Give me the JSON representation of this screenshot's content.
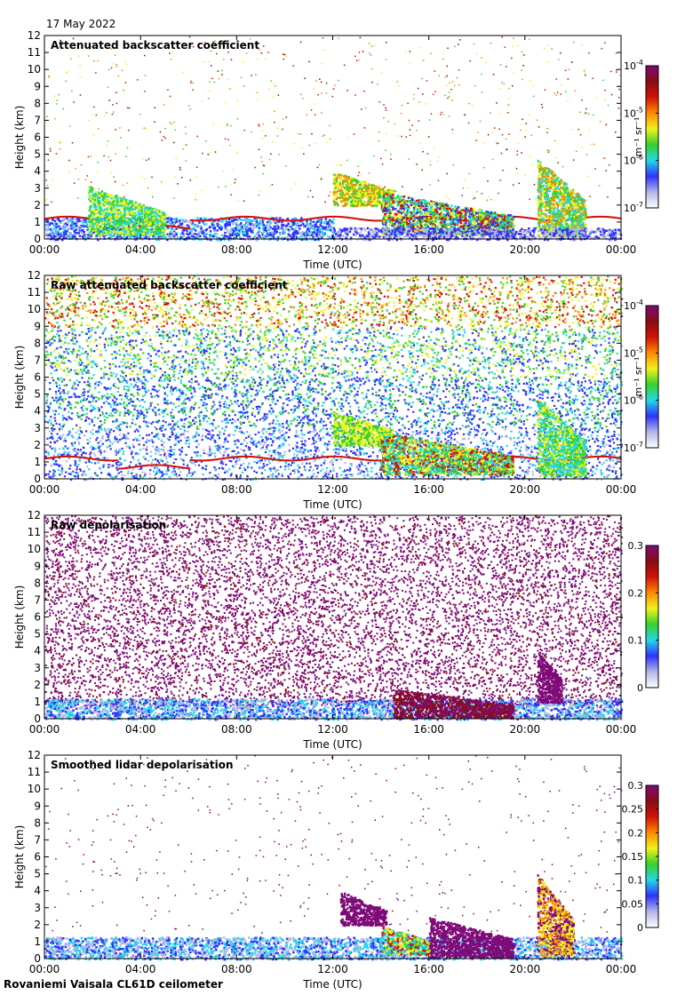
{
  "date": "17 May 2022",
  "footer": "Rovaniemi Vaisala CL61D ceilometer",
  "colors": {
    "white": "#ffffff",
    "lilac": "#b3b5e6",
    "blue": "#2f33ff",
    "cyan": "#22d8e8",
    "green": "#36d12a",
    "yellow": "#f0f21c",
    "orange": "#ff8a00",
    "red": "#d4120a",
    "darkred": "#8a0c12",
    "purple": "#7e0a78"
  },
  "chart_data": [
    {
      "type": "heatmap",
      "title": "Attenuated backscatter coefficient",
      "xlabel": "Time (UTC)",
      "ylabel": "Height (km)",
      "x_ticks": [
        "00:00",
        "04:00",
        "08:00",
        "12:00",
        "16:00",
        "20:00",
        "00:00"
      ],
      "xlim_hours": [
        0,
        24
      ],
      "y_ticks": [
        0,
        1,
        2,
        3,
        4,
        5,
        6,
        7,
        8,
        9,
        10,
        11,
        12
      ],
      "ylim_km": [
        0,
        12
      ],
      "colorbar": {
        "scale": "log",
        "range": [
          1e-07,
          0.0001
        ],
        "unit": "m⁻¹ sr⁻¹",
        "ticks": [
          {
            "base": "10",
            "exp": "-4",
            "v": 0.0001
          },
          {
            "base": "10",
            "exp": "-5",
            "v": 1e-05
          },
          {
            "base": "10",
            "exp": "-6",
            "v": 1e-06
          },
          {
            "base": "10",
            "exp": "-7",
            "v": 1e-07
          }
        ]
      },
      "features": [
        {
          "kind": "noise",
          "density": 0.05,
          "h_min": 2.2,
          "colors": [
            "yellow",
            "orange",
            "red",
            "darkred",
            "green"
          ]
        },
        {
          "kind": "band",
          "t_start": 0,
          "t_end": 12,
          "h_low": 0.0,
          "h_high": 1.3,
          "colors": [
            "blue",
            "lilac",
            "blue",
            "cyan"
          ]
        },
        {
          "kind": "layer",
          "t_start": 0,
          "t_end": 24,
          "h": 1.25,
          "color": "red"
        },
        {
          "kind": "cloud",
          "t_start": 1.8,
          "t_end": 5.0,
          "h_low": 0.3,
          "h_high": 3.2,
          "colors": [
            "green",
            "cyan",
            "yellow"
          ]
        },
        {
          "kind": "cloud",
          "t_start": 12.0,
          "t_end": 14.5,
          "h_low": 2.0,
          "h_high": 4.0,
          "colors": [
            "yellow",
            "orange",
            "green"
          ]
        },
        {
          "kind": "cloud",
          "t_start": 14.0,
          "t_end": 19.5,
          "h_low": 0.3,
          "h_high": 2.8,
          "colors": [
            "green",
            "yellow",
            "red",
            "cyan",
            "blue"
          ]
        },
        {
          "kind": "cloud",
          "t_start": 20.5,
          "t_end": 22.5,
          "h_low": 0.2,
          "h_high": 4.8,
          "colors": [
            "green",
            "cyan",
            "yellow",
            "orange"
          ]
        },
        {
          "kind": "band",
          "t_start": 12,
          "t_end": 24,
          "h_low": 0.0,
          "h_high": 0.7,
          "colors": [
            "blue",
            "lilac"
          ]
        }
      ]
    },
    {
      "type": "heatmap",
      "title": "Raw attenuated backscatter coefficient",
      "xlabel": "Time (UTC)",
      "ylabel": "Height (km)",
      "x_ticks": [
        "00:00",
        "04:00",
        "08:00",
        "12:00",
        "16:00",
        "20:00",
        "00:00"
      ],
      "xlim_hours": [
        0,
        24
      ],
      "y_ticks": [
        0,
        1,
        2,
        3,
        4,
        5,
        6,
        7,
        8,
        9,
        10,
        11,
        12
      ],
      "ylim_km": [
        0,
        12
      ],
      "colorbar": {
        "scale": "log",
        "range": [
          1e-07,
          0.0001
        ],
        "unit": "m⁻¹ sr⁻¹",
        "ticks": [
          {
            "base": "10",
            "exp": "-4",
            "v": 0.0001
          },
          {
            "base": "10",
            "exp": "-5",
            "v": 1e-05
          },
          {
            "base": "10",
            "exp": "-6",
            "v": 1e-06
          },
          {
            "base": "10",
            "exp": "-7",
            "v": 1e-07
          }
        ]
      },
      "features": [
        {
          "kind": "field",
          "note": "dense noise: blue low, green/yellow mid, orange/red top"
        },
        {
          "kind": "layer",
          "t_start": 0,
          "t_end": 24,
          "h": 1.25,
          "color": "red"
        },
        {
          "kind": "cloud",
          "t_start": 12.0,
          "t_end": 14.5,
          "h_low": 2.0,
          "h_high": 4.0,
          "colors": [
            "yellow",
            "green"
          ]
        },
        {
          "kind": "cloud",
          "t_start": 14.0,
          "t_end": 19.5,
          "h_low": 0.3,
          "h_high": 2.8,
          "colors": [
            "green",
            "yellow",
            "red",
            "cyan"
          ]
        },
        {
          "kind": "cloud",
          "t_start": 20.5,
          "t_end": 22.5,
          "h_low": 0.2,
          "h_high": 4.8,
          "colors": [
            "green",
            "cyan",
            "yellow"
          ]
        }
      ]
    },
    {
      "type": "heatmap",
      "title": "Raw depolarisation",
      "xlabel": "Time (UTC)",
      "ylabel": "Height (km)",
      "x_ticks": [
        "00:00",
        "04:00",
        "08:00",
        "12:00",
        "16:00",
        "20:00",
        "00:00"
      ],
      "xlim_hours": [
        0,
        24
      ],
      "y_ticks": [
        0,
        1,
        2,
        3,
        4,
        5,
        6,
        7,
        8,
        9,
        10,
        11,
        12
      ],
      "ylim_km": [
        0,
        12
      ],
      "colorbar": {
        "scale": "linear",
        "range": [
          0,
          0.3
        ],
        "unit": "",
        "ticks": [
          {
            "label": "0.3",
            "v": 0.3
          },
          {
            "label": "0.2",
            "v": 0.2
          },
          {
            "label": "0.1",
            "v": 0.1
          },
          {
            "label": "0",
            "v": 0
          }
        ]
      },
      "features": [
        {
          "kind": "field",
          "note": "purple speckle on white over whole panel"
        },
        {
          "kind": "band",
          "t_start": 0,
          "t_end": 24,
          "h_low": 0.0,
          "h_high": 1.2,
          "colors": [
            "lilac",
            "blue",
            "cyan"
          ]
        },
        {
          "kind": "cloud",
          "t_start": 14.5,
          "t_end": 19.5,
          "h_low": 0.1,
          "h_high": 1.8,
          "colors": [
            "purple",
            "darkred"
          ]
        },
        {
          "kind": "cloud",
          "t_start": 20.5,
          "t_end": 21.5,
          "h_low": 1.0,
          "h_high": 4.0,
          "colors": [
            "purple"
          ]
        }
      ]
    },
    {
      "type": "heatmap",
      "title": "Smoothed lidar depolarisation",
      "xlabel": "Time (UTC)",
      "ylabel": "Height (km)",
      "x_ticks": [
        "00:00",
        "04:00",
        "08:00",
        "12:00",
        "16:00",
        "20:00",
        "00:00"
      ],
      "xlim_hours": [
        0,
        24
      ],
      "y_ticks": [
        0,
        1,
        2,
        3,
        4,
        5,
        6,
        7,
        8,
        9,
        10,
        11,
        12
      ],
      "ylim_km": [
        0,
        12
      ],
      "colorbar": {
        "scale": "linear",
        "range": [
          0,
          0.3
        ],
        "unit": "",
        "ticks": [
          {
            "label": "0.3",
            "v": 0.3
          },
          {
            "label": "0.25",
            "v": 0.25
          },
          {
            "label": "0.2",
            "v": 0.2
          },
          {
            "label": "0.15",
            "v": 0.15
          },
          {
            "label": "0.1",
            "v": 0.1
          },
          {
            "label": "0.05",
            "v": 0.05
          },
          {
            "label": "0",
            "v": 0
          }
        ]
      },
      "features": [
        {
          "kind": "noise",
          "density": 0.03,
          "h_min": 1.5,
          "colors": [
            "purple",
            "darkred"
          ]
        },
        {
          "kind": "band",
          "t_start": 0,
          "t_end": 24,
          "h_low": 0.0,
          "h_high": 1.3,
          "colors": [
            "lilac",
            "blue",
            "cyan"
          ]
        },
        {
          "kind": "cloud",
          "t_start": 12.3,
          "t_end": 14.2,
          "h_low": 2.0,
          "h_high": 4.0,
          "colors": [
            "purple"
          ]
        },
        {
          "kind": "cloud",
          "t_start": 14.0,
          "t_end": 16.0,
          "h_low": 0.3,
          "h_high": 2.0,
          "colors": [
            "yellow",
            "red",
            "green",
            "cyan"
          ]
        },
        {
          "kind": "cloud",
          "t_start": 16.0,
          "t_end": 19.5,
          "h_low": 0.1,
          "h_high": 2.5,
          "colors": [
            "purple"
          ]
        },
        {
          "kind": "cloud",
          "t_start": 20.5,
          "t_end": 22.0,
          "h_low": 0.2,
          "h_high": 5.0,
          "colors": [
            "purple",
            "yellow",
            "orange"
          ]
        }
      ]
    }
  ]
}
